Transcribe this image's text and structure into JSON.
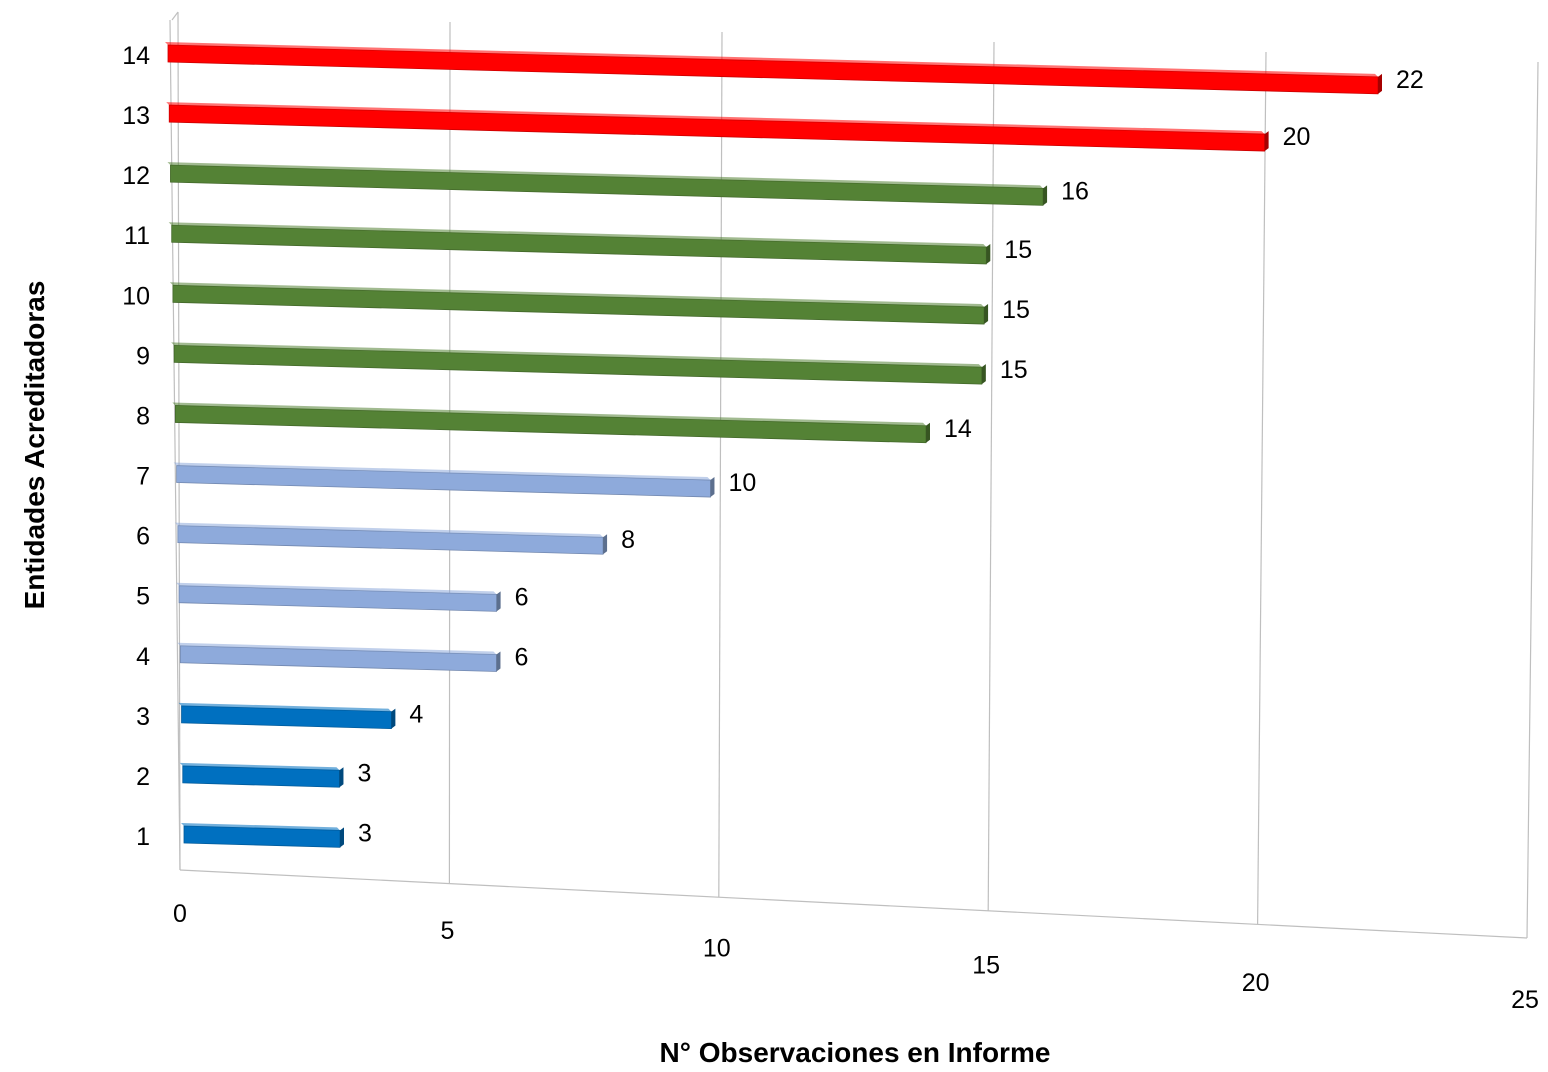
{
  "chart_data": {
    "type": "bar",
    "orientation": "horizontal",
    "categories": [
      "1",
      "2",
      "3",
      "4",
      "5",
      "6",
      "7",
      "8",
      "9",
      "10",
      "11",
      "12",
      "13",
      "14"
    ],
    "values": [
      3,
      3,
      4,
      6,
      6,
      8,
      10,
      14,
      15,
      15,
      15,
      16,
      20,
      22
    ],
    "bar_colors": [
      "#0070c0",
      "#0070c0",
      "#0070c0",
      "#8eaadb",
      "#8eaadb",
      "#8eaadb",
      "#8eaadb",
      "#548235",
      "#548235",
      "#548235",
      "#548235",
      "#548235",
      "#ff0000",
      "#ff0000"
    ],
    "title": "",
    "xlabel": "N° Observaciones en Informe",
    "ylabel": "Entidades Acreditadoras",
    "xlim": [
      0,
      25
    ],
    "x_ticks": [
      "0",
      "5",
      "10",
      "15",
      "20",
      "25"
    ],
    "grid": "vertical",
    "legend": "none",
    "style": "3d-perspective"
  }
}
